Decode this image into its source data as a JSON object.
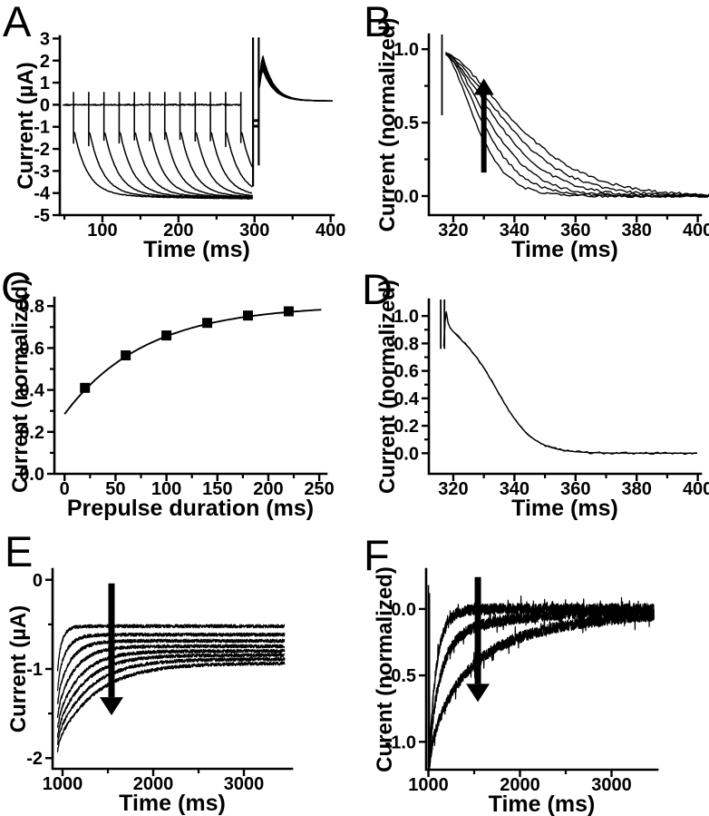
{
  "figure": {
    "background": "#ffffff",
    "ink": "#000000"
  },
  "chart_data": [
    {
      "id": "A",
      "panel_label": "A",
      "type": "line",
      "xlabel": "Time (ms)",
      "ylabel": "Current (µA)",
      "xlim": [
        44,
        404
      ],
      "ylim": [
        -5,
        3.1
      ],
      "grid": false,
      "legend": null,
      "xticks": [
        100,
        200,
        300,
        400
      ],
      "xtick_labels": [
        "100",
        "200",
        "300",
        "400"
      ],
      "xminor": [
        50,
        150,
        250,
        350
      ],
      "yticks": [
        -5,
        -4,
        -3,
        -2,
        -1,
        0,
        1,
        2,
        3
      ],
      "ytick_labels": [
        "-5",
        "-4",
        "-3",
        "-2",
        "-1",
        "0",
        "1",
        "2",
        "3"
      ],
      "yminor": [],
      "base": {
        "y": 0,
        "x0": 48,
        "x1": 283,
        "noise": 0.035
      },
      "onsets": [
        62,
        82,
        102,
        122,
        142,
        162,
        182,
        202,
        222,
        242,
        262,
        282
      ],
      "pp": {
        "spike_top": 0.58,
        "hook": -1.28,
        "floor": -4.05,
        "tau_fast": 17,
        "creep": 0.26,
        "tau_creep": 150,
        "end": 298
      },
      "art": [
        [
          298,
          -3.7,
          3.05
        ],
        [
          305.5,
          -2.75,
          3.05
        ]
      ],
      "mid_segs": [
        [
          299,
          305,
          -0.72
        ],
        [
          299,
          305,
          -0.97
        ]
      ],
      "tails": {
        "x0": 306.5,
        "xp": 311,
        "tau": 14.5,
        "floor": 0.17,
        "x1": 403,
        "noise": 0.012,
        "peaks": [
          2.22,
          2.13,
          2.05,
          1.97,
          1.9,
          1.83,
          1.77,
          1.72,
          1.67,
          1.63,
          1.6,
          1.57
        ]
      }
    },
    {
      "id": "B",
      "panel_label": "B",
      "type": "line",
      "xlabel": "Time (ms)",
      "ylabel": "Current (normalized)",
      "xlim": [
        312,
        401
      ],
      "ylim": [
        -0.13,
        1.1
      ],
      "grid": false,
      "legend": null,
      "xticks": [
        320,
        340,
        360,
        380,
        400
      ],
      "xtick_labels": [
        "320",
        "340",
        "360",
        "380",
        "400"
      ],
      "xminor": [
        330,
        350,
        370,
        390
      ],
      "yticks": [
        0,
        0.5,
        1.0
      ],
      "ytick_labels": [
        "0.0",
        "0.5",
        "1.0"
      ],
      "yminor": [
        0.25,
        0.75
      ],
      "art": [
        [
          316.3,
          0.55,
          1.1
        ]
      ],
      "dec": {
        "x0": 317.5,
        "x1": 404,
        "start": 0.97,
        "p": 1.5,
        "c": [
          13,
          16,
          19,
          22.5,
          26,
          30
        ],
        "noise": 0.009
      },
      "arrow": {
        "x": 330,
        "y0": 0.16,
        "y1": 0.8,
        "dir": "up"
      }
    },
    {
      "id": "C",
      "panel_label": "C",
      "type": "scatter",
      "xlabel": "Prepulse duration (ms)",
      "ylabel": "Current (normalized)",
      "xlim": [
        -10,
        257
      ],
      "ylim": [
        0,
        0.84
      ],
      "grid": false,
      "legend": null,
      "xticks": [
        0,
        50,
        100,
        150,
        200,
        250
      ],
      "xtick_labels": [
        "0",
        "50",
        "100",
        "150",
        "200",
        "250"
      ],
      "xminor": [
        25,
        75,
        125,
        175,
        225
      ],
      "yticks": [
        0,
        0.2,
        0.4,
        0.6,
        0.8
      ],
      "ytick_labels": [
        "0.0",
        "0.2",
        "0.4",
        "0.6",
        "0.8"
      ],
      "yminor": [
        0.1,
        0.3,
        0.5,
        0.7
      ],
      "marker": "square",
      "marker_px": 11,
      "points": [
        [
          20,
          0.41
        ],
        [
          60,
          0.565
        ],
        [
          100,
          0.66
        ],
        [
          140,
          0.72
        ],
        [
          180,
          0.755
        ],
        [
          220,
          0.775
        ]
      ],
      "fit": {
        "y0": 0.285,
        "amp": 0.52,
        "tau": 80,
        "x0": 0,
        "x1": 252
      }
    },
    {
      "id": "D",
      "panel_label": "D",
      "type": "line",
      "xlabel": "Time (ms)",
      "ylabel": "Current (normalized)",
      "xlim": [
        312,
        401
      ],
      "ylim": [
        -0.15,
        1.12
      ],
      "grid": false,
      "legend": null,
      "xticks": [
        320,
        340,
        360,
        380,
        400
      ],
      "xtick_labels": [
        "320",
        "340",
        "360",
        "380",
        "400"
      ],
      "xminor": [
        330,
        350,
        370,
        390
      ],
      "yticks": [
        0,
        0.2,
        0.4,
        0.6,
        0.8,
        1.0
      ],
      "ytick_labels": [
        "0.0",
        "0.2",
        "0.4",
        "0.6",
        "0.8",
        "1.0"
      ],
      "yminor": [
        0.1,
        0.3,
        0.5,
        0.7,
        0.9
      ],
      "art": [
        [
          315.9,
          0.76,
          1.12
        ],
        [
          317.1,
          0.76,
          1.12
        ]
      ],
      "tr": {
        "pre": [
          [
            316.9,
            0.78
          ],
          [
            317.3,
            0.96
          ],
          [
            317.7,
            1.03
          ],
          [
            318.3,
            0.95
          ]
        ],
        "x0": 319,
        "x1": 400,
        "amp": 0.9,
        "mid": 334.5,
        "k": 5.8,
        "hump": 0.07,
        "hump_tau": 4,
        "noise": 0.008
      }
    },
    {
      "id": "E",
      "panel_label": "E",
      "type": "line",
      "xlabel": "Time (ms)",
      "ylabel": "Current (µA)",
      "xlim": [
        890,
        3530
      ],
      "ylim": [
        -2.12,
        0.12
      ],
      "grid": false,
      "legend": null,
      "xticks": [
        1000,
        2000,
        3000
      ],
      "xtick_labels": [
        "1000",
        "2000",
        "3000"
      ],
      "xminor": [
        1500,
        2500
      ],
      "yticks": [
        0,
        -1,
        -2
      ],
      "ytick_labels": [
        "0",
        "-1",
        "-2"
      ],
      "yminor": [
        -0.5,
        -1.5
      ],
      "tr": {
        "x0": 945,
        "x1": 3450,
        "noise": 0.02,
        "dip": [
          0.1,
          20
        ],
        "list": [
          [
            -0.92,
            -0.52,
            55
          ],
          [
            -1.13,
            -0.615,
            95
          ],
          [
            -1.3,
            -0.685,
            140
          ],
          [
            -1.45,
            -0.745,
            190
          ],
          [
            -1.57,
            -0.8,
            245
          ],
          [
            -1.66,
            -0.845,
            300
          ],
          [
            -1.74,
            -0.89,
            360
          ],
          [
            -1.82,
            -0.935,
            430
          ]
        ]
      },
      "arrow": {
        "x": 1540,
        "y0": -0.04,
        "y1": -1.52,
        "dir": "down"
      }
    },
    {
      "id": "F",
      "panel_label": "F",
      "type": "line",
      "xlabel": "Time (ms)",
      "ylabel": "Curent (normalized)",
      "xlim": [
        975,
        3500
      ],
      "ylim": [
        -1.21,
        0.3
      ],
      "grid": false,
      "legend": null,
      "xticks": [
        1000,
        2000,
        3000
      ],
      "xtick_labels": [
        "1000",
        "2000",
        "3000"
      ],
      "xminor": [
        1500,
        2500
      ],
      "yticks": [
        0,
        -0.5,
        -1.0
      ],
      "ytick_labels": [
        "0.0",
        "-0.5",
        "-1.0"
      ],
      "yminor": [],
      "art": [
        [
          1000,
          -1.21,
          0.18
        ],
        [
          1011,
          -1.21,
          0.12
        ]
      ],
      "tr": {
        "x0": 1006,
        "x1": 3465,
        "amp": -1.06,
        "noise": 0.042,
        "dip": [
          0.18,
          25
        ],
        "list": [
          [
            [
              1.0,
              90
            ]
          ],
          [
            [
              0.8,
              130
            ],
            [
              0.2,
              900
            ]
          ],
          [
            [
              0.55,
              300
            ],
            [
              0.45,
              1100
            ]
          ]
        ]
      },
      "arrow": {
        "x": 1540,
        "y0": 0.24,
        "y1": -0.7,
        "dir": "down"
      }
    }
  ]
}
